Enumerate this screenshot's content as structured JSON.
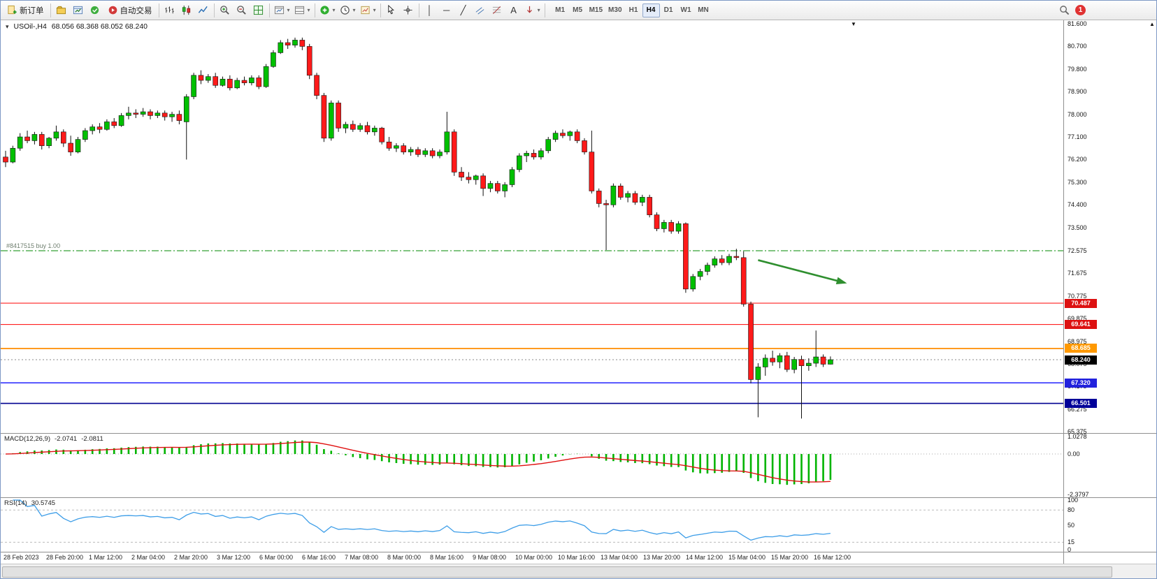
{
  "toolbar": {
    "new_order": "新订单",
    "auto_trading": "自动交易",
    "text_tool": "A",
    "timeframes": [
      "M1",
      "M5",
      "M15",
      "M30",
      "H1",
      "H4",
      "D1",
      "W1",
      "MN"
    ],
    "active_timeframe": "H4",
    "notification_badge": "1"
  },
  "icons": {
    "dropdown": "▾",
    "vertical_line": "│",
    "horizontal_line": "─",
    "trendline": "╱",
    "scroll_up_arrow": "▲",
    "chart_shift_marker": "▼",
    "symbol_collapse": "▾"
  },
  "chart": {
    "symbol_label": "USOil-,H4",
    "ohlc_label": "68.056 68.368 68.052 68.240",
    "order_line": {
      "label": "#8417515 buy 1.00",
      "price": 72.575
    },
    "current_price": "68.240",
    "levels": [
      {
        "label": "70.487",
        "price": 70.487,
        "line": "#ff2020",
        "tag": "#dd1111",
        "w": 1.1
      },
      {
        "label": "69.641",
        "price": 69.641,
        "line": "#ff2020",
        "tag": "#dd1111",
        "w": 1.1
      },
      {
        "label": "68.685",
        "price": 68.685,
        "line": "#ff8c00",
        "tag": "#ff9900",
        "w": 1.8
      },
      {
        "label": "67.320",
        "price": 67.32,
        "line": "#2222ff",
        "tag": "#2222dd",
        "w": 1.6
      },
      {
        "label": "66.501",
        "price": 66.501,
        "line": "#000090",
        "tag": "#000099",
        "w": 1.6
      }
    ],
    "y_ticks": [
      "81.600",
      "80.700",
      "79.800",
      "78.900",
      "78.000",
      "77.100",
      "76.200",
      "75.300",
      "74.400",
      "73.500",
      "72.575",
      "71.675",
      "70.775",
      "69.875",
      "68.975",
      "68.075",
      "67.175",
      "66.275",
      "65.375"
    ]
  },
  "macd": {
    "name": "MACD(12,26,9)",
    "main_value": "-2.0741",
    "signal_value": "-2.0811",
    "axis": [
      "1.0278",
      "0.00",
      "-2.3797"
    ]
  },
  "rsi": {
    "name": "RSI(14)",
    "value": "30.5745",
    "axis": [
      "100",
      "80",
      "50",
      "15",
      "0"
    ]
  },
  "colors": {
    "bull_candle": "#00c000",
    "bear_candle": "#ff1a1a",
    "candle_outline": "#111111",
    "macd_histogram": "#00b400",
    "macd_signal": "#e01010",
    "rsi_line": "#3e9ee8",
    "order_line": "#008800",
    "arrow": "#2f8f2f",
    "current_price_line": "#888888"
  },
  "chart_data": {
    "type": "candlestick",
    "symbol": "USOil",
    "timeframe": "H4",
    "ohlc_current": {
      "open": 68.056,
      "high": 68.368,
      "low": 68.052,
      "close": 68.24
    },
    "y_range": [
      65.375,
      81.6
    ],
    "x_labels": [
      "28 Feb 2023",
      "28 Feb 20:00",
      "1 Mar 12:00",
      "2 Mar 04:00",
      "2 Mar 20:00",
      "3 Mar 12:00",
      "6 Mar 00:00",
      "6 Mar 16:00",
      "7 Mar 08:00",
      "8 Mar 00:00",
      "8 Mar 16:00",
      "9 Mar 08:00",
      "10 Mar 00:00",
      "10 Mar 16:00",
      "13 Mar 04:00",
      "13 Mar 20:00",
      "14 Mar 12:00",
      "15 Mar 04:00",
      "15 Mar 20:00",
      "16 Mar 12:00"
    ],
    "candles": [
      [
        76.3,
        76.55,
        75.9,
        76.1
      ],
      [
        76.1,
        76.75,
        76.05,
        76.65
      ],
      [
        76.65,
        77.25,
        76.55,
        77.1
      ],
      [
        77.1,
        77.35,
        76.85,
        76.95
      ],
      [
        76.95,
        77.3,
        76.8,
        77.2
      ],
      [
        77.2,
        77.3,
        76.6,
        76.75
      ],
      [
        76.75,
        77.1,
        76.65,
        77.05
      ],
      [
        77.05,
        77.55,
        76.95,
        77.3
      ],
      [
        77.3,
        77.4,
        76.7,
        76.85
      ],
      [
        76.85,
        77.15,
        76.35,
        76.5
      ],
      [
        76.5,
        77.1,
        76.45,
        77.0
      ],
      [
        77.0,
        77.45,
        76.9,
        77.35
      ],
      [
        77.35,
        77.6,
        77.2,
        77.5
      ],
      [
        77.5,
        77.65,
        77.25,
        77.4
      ],
      [
        77.4,
        77.8,
        77.35,
        77.7
      ],
      [
        77.7,
        77.85,
        77.45,
        77.55
      ],
      [
        77.55,
        78.05,
        77.5,
        77.95
      ],
      [
        77.95,
        78.3,
        77.8,
        78.05
      ],
      [
        78.05,
        78.2,
        77.85,
        78.0
      ],
      [
        78.0,
        78.25,
        77.9,
        78.1
      ],
      [
        78.1,
        78.2,
        77.8,
        77.95
      ],
      [
        77.95,
        78.15,
        77.85,
        78.05
      ],
      [
        78.05,
        78.15,
        77.75,
        77.9
      ],
      [
        77.9,
        78.1,
        77.7,
        78.0
      ],
      [
        78.0,
        78.15,
        77.6,
        77.75
      ],
      [
        77.7,
        78.8,
        76.2,
        78.7
      ],
      [
        78.7,
        79.65,
        78.6,
        79.55
      ],
      [
        79.55,
        79.75,
        79.2,
        79.35
      ],
      [
        79.35,
        79.6,
        79.25,
        79.5
      ],
      [
        79.5,
        79.65,
        79.05,
        79.15
      ],
      [
        79.15,
        79.5,
        79.1,
        79.4
      ],
      [
        79.4,
        79.55,
        78.95,
        79.05
      ],
      [
        79.05,
        79.45,
        79.0,
        79.35
      ],
      [
        79.35,
        79.5,
        79.15,
        79.25
      ],
      [
        79.25,
        79.55,
        79.15,
        79.45
      ],
      [
        79.45,
        79.55,
        79.0,
        79.1
      ],
      [
        79.1,
        80.0,
        79.05,
        79.9
      ],
      [
        79.9,
        80.55,
        79.85,
        80.45
      ],
      [
        80.45,
        80.95,
        80.4,
        80.85
      ],
      [
        80.85,
        81.0,
        80.6,
        80.75
      ],
      [
        80.75,
        81.05,
        80.65,
        80.95
      ],
      [
        80.95,
        81.05,
        80.55,
        80.7
      ],
      [
        80.7,
        80.8,
        79.4,
        79.55
      ],
      [
        79.55,
        79.65,
        78.6,
        78.75
      ],
      [
        78.75,
        78.85,
        76.9,
        77.05
      ],
      [
        77.05,
        78.55,
        76.95,
        78.45
      ],
      [
        78.45,
        78.55,
        77.3,
        77.45
      ],
      [
        77.45,
        77.7,
        77.25,
        77.6
      ],
      [
        77.6,
        77.75,
        77.3,
        77.4
      ],
      [
        77.4,
        77.65,
        77.3,
        77.55
      ],
      [
        77.55,
        77.7,
        77.2,
        77.3
      ],
      [
        77.3,
        77.55,
        77.15,
        77.45
      ],
      [
        77.45,
        77.5,
        76.8,
        76.9
      ],
      [
        76.9,
        77.1,
        76.55,
        76.65
      ],
      [
        76.65,
        76.85,
        76.5,
        76.75
      ],
      [
        76.75,
        76.85,
        76.4,
        76.5
      ],
      [
        76.5,
        76.7,
        76.35,
        76.6
      ],
      [
        76.6,
        76.7,
        76.3,
        76.4
      ],
      [
        76.4,
        76.65,
        76.3,
        76.55
      ],
      [
        76.55,
        76.65,
        76.25,
        76.35
      ],
      [
        76.35,
        76.6,
        76.25,
        76.5
      ],
      [
        76.5,
        78.1,
        76.4,
        77.3
      ],
      [
        77.3,
        77.4,
        75.55,
        75.7
      ],
      [
        75.7,
        75.9,
        75.35,
        75.5
      ],
      [
        75.5,
        75.7,
        75.25,
        75.4
      ],
      [
        75.4,
        75.6,
        75.2,
        75.55
      ],
      [
        75.55,
        75.65,
        74.75,
        75.05
      ],
      [
        75.05,
        75.35,
        74.9,
        75.25
      ],
      [
        75.25,
        75.35,
        74.85,
        74.95
      ],
      [
        74.95,
        75.3,
        74.7,
        75.2
      ],
      [
        75.2,
        75.9,
        75.1,
        75.8
      ],
      [
        75.8,
        76.45,
        75.7,
        76.35
      ],
      [
        76.35,
        76.55,
        76.1,
        76.45
      ],
      [
        76.45,
        76.6,
        76.2,
        76.3
      ],
      [
        76.3,
        76.65,
        76.2,
        76.55
      ],
      [
        76.55,
        77.1,
        76.45,
        77.0
      ],
      [
        77.0,
        77.35,
        76.9,
        77.25
      ],
      [
        77.25,
        77.4,
        77.05,
        77.15
      ],
      [
        77.15,
        77.35,
        76.95,
        77.3
      ],
      [
        77.3,
        77.4,
        76.85,
        76.95
      ],
      [
        76.95,
        77.05,
        76.4,
        76.5
      ],
      [
        76.5,
        77.35,
        74.85,
        74.95
      ],
      [
        74.95,
        75.05,
        74.3,
        74.45
      ],
      [
        74.45,
        74.6,
        72.6,
        74.4
      ],
      [
        74.4,
        75.25,
        74.3,
        75.15
      ],
      [
        75.15,
        75.25,
        74.6,
        74.7
      ],
      [
        74.7,
        74.95,
        74.5,
        74.85
      ],
      [
        74.85,
        74.95,
        74.4,
        74.5
      ],
      [
        74.5,
        74.8,
        74.35,
        74.7
      ],
      [
        74.7,
        74.8,
        73.9,
        74.0
      ],
      [
        74.0,
        74.1,
        73.35,
        73.45
      ],
      [
        73.45,
        73.8,
        73.3,
        73.7
      ],
      [
        73.7,
        73.8,
        73.25,
        73.35
      ],
      [
        73.35,
        73.75,
        73.25,
        73.65
      ],
      [
        73.65,
        73.7,
        70.9,
        71.05
      ],
      [
        71.05,
        71.65,
        70.95,
        71.55
      ],
      [
        71.55,
        71.85,
        71.4,
        71.75
      ],
      [
        71.75,
        72.1,
        71.6,
        72.0
      ],
      [
        72.0,
        72.35,
        71.9,
        72.25
      ],
      [
        72.25,
        72.4,
        72.0,
        72.1
      ],
      [
        72.1,
        72.45,
        72.0,
        72.35
      ],
      [
        72.35,
        72.65,
        72.2,
        72.3
      ],
      [
        72.3,
        72.55,
        70.35,
        70.45
      ],
      [
        70.45,
        70.55,
        67.3,
        67.45
      ],
      [
        67.45,
        68.1,
        65.95,
        67.95
      ],
      [
        67.95,
        68.45,
        67.6,
        68.3
      ],
      [
        68.3,
        68.6,
        68.0,
        68.15
      ],
      [
        68.15,
        68.5,
        67.9,
        68.4
      ],
      [
        68.4,
        68.55,
        67.75,
        67.85
      ],
      [
        67.85,
        68.35,
        67.7,
        68.25
      ],
      [
        68.25,
        68.4,
        65.9,
        68.0
      ],
      [
        68.0,
        68.3,
        67.8,
        68.1
      ],
      [
        68.1,
        69.4,
        67.95,
        68.35
      ],
      [
        68.35,
        68.45,
        67.95,
        68.06
      ],
      [
        68.06,
        68.37,
        68.05,
        68.24
      ]
    ],
    "overlays": {
      "buy_order_line": 72.575,
      "resistance_lines": [
        70.487,
        69.641
      ],
      "mid_line": 68.685,
      "support_lines": [
        67.32,
        66.501
      ],
      "trend_arrow": {
        "from_index": 104,
        "from_price": 72.2,
        "to_index": 116,
        "to_price": 71.3,
        "note": "downward annotation arrow"
      }
    },
    "indicators": [
      {
        "type": "MACD",
        "params": [
          12,
          26,
          9
        ],
        "last_main": -2.0741,
        "last_signal": -2.0811,
        "axis_range": [
          -2.3797,
          1.0278
        ]
      },
      {
        "type": "RSI",
        "params": [
          14
        ],
        "last_value": 30.5745,
        "levels": [
          80,
          15
        ]
      }
    ]
  }
}
